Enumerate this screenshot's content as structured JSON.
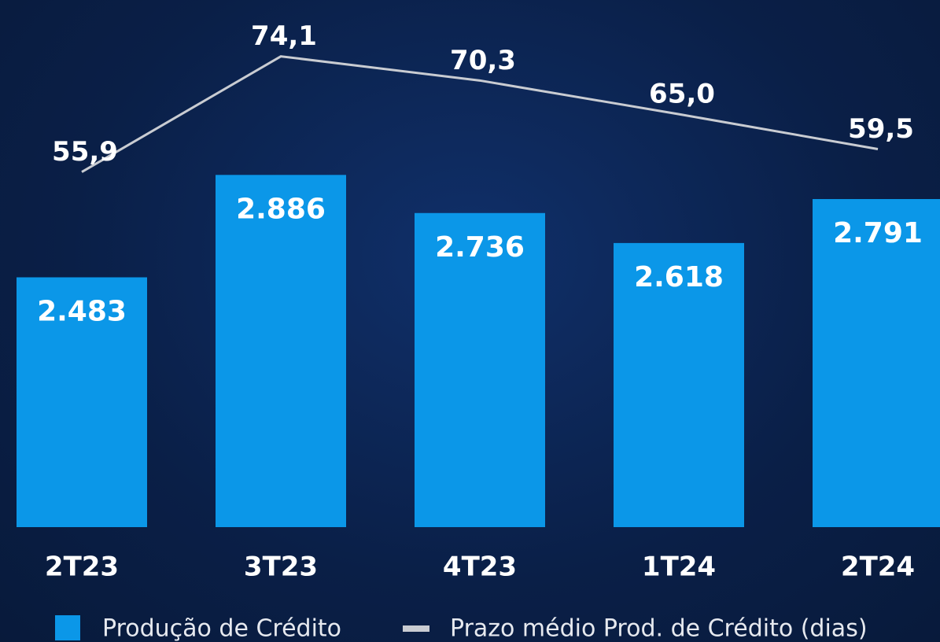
{
  "chart_data": {
    "type": "bar",
    "categories": [
      "2T23",
      "3T23",
      "4T23",
      "1T24",
      "2T24"
    ],
    "series": [
      {
        "name": "Produção de Crédito",
        "type": "bar",
        "color": "#0b97e8",
        "values": [
          2483,
          2886,
          2736,
          2618,
          2791
        ],
        "value_labels": [
          "2.483",
          "2.886",
          "2.736",
          "2.618",
          "2.791"
        ]
      },
      {
        "name": "Prazo médio Prod. de Crédito (dias)",
        "type": "line",
        "axis": "y2",
        "color": "#c9ccd2",
        "values": [
          55.9,
          74.1,
          70.3,
          65.0,
          59.5
        ],
        "value_labels": [
          "55,9",
          "74,1",
          "70,3",
          "65,0",
          "59,5"
        ]
      }
    ],
    "ylim": [
      1500,
      3500
    ],
    "y2lim": [
      0,
      80
    ]
  }
}
